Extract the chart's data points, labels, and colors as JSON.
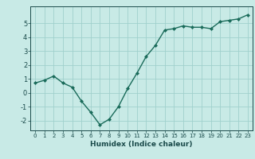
{
  "x": [
    0,
    1,
    2,
    3,
    4,
    5,
    6,
    7,
    8,
    9,
    10,
    11,
    12,
    13,
    14,
    15,
    16,
    17,
    18,
    19,
    20,
    21,
    22,
    23
  ],
  "y": [
    0.7,
    0.9,
    1.2,
    0.7,
    0.4,
    -0.6,
    -1.4,
    -2.3,
    -1.9,
    -1.0,
    0.3,
    1.4,
    2.6,
    3.4,
    4.5,
    4.6,
    4.8,
    4.7,
    4.7,
    4.6,
    5.1,
    5.2,
    5.3,
    5.6
  ],
  "xlabel": "Humidex (Indice chaleur)",
  "xlim": [
    -0.5,
    23.5
  ],
  "ylim": [
    -2.7,
    6.2
  ],
  "bg_color": "#c8eae6",
  "line_color": "#1a6b5a",
  "grid_color": "#a0d0cc",
  "text_color": "#1a4a4a",
  "xtick_labels": [
    "0",
    "1",
    "2",
    "3",
    "4",
    "5",
    "6",
    "7",
    "8",
    "9",
    "10",
    "11",
    "12",
    "13",
    "14",
    "15",
    "16",
    "17",
    "18",
    "19",
    "20",
    "21",
    "22",
    "23"
  ],
  "ytick_values": [
    -2,
    -1,
    0,
    1,
    2,
    3,
    4,
    5
  ]
}
